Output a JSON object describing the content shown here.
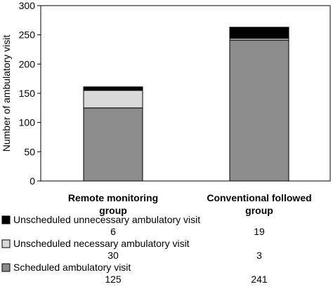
{
  "chart_data": {
    "type": "bar",
    "stacked": true,
    "categories": [
      "Remote monitoring group",
      "Conventional followed group"
    ],
    "category_lines": [
      [
        "Remote monitoring",
        "group"
      ],
      [
        "Conventional followed",
        "group"
      ]
    ],
    "ylabel": "Number of ambulatory visit",
    "ylim": [
      0,
      300
    ],
    "yticks": [
      0,
      50,
      100,
      150,
      200,
      250,
      300
    ],
    "grid": false,
    "legend_placement": "bottom data table",
    "series": [
      {
        "name": "Scheduled ambulatory visit",
        "values": [
          125,
          241
        ],
        "color": "#8c8c8c"
      },
      {
        "name": "Unscheduled necessary ambulatory visit",
        "values": [
          30,
          3
        ],
        "color": "#d9d9d9"
      },
      {
        "name": "Unscheduled unnecessary ambulatory visit",
        "values": [
          6,
          19
        ],
        "color": "#000000"
      }
    ]
  }
}
